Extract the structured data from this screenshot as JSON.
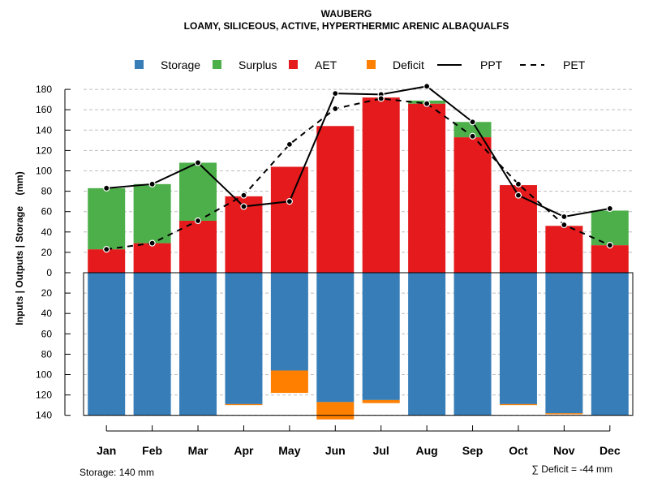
{
  "chart_data": {
    "type": "bar",
    "title": "WAUBERG",
    "subtitle": "LOAMY, SILICEOUS, ACTIVE, HYPERTHERMIC ARENIC ALBAQUALFS",
    "ylabel": "Inputs | Outputs | Storage    (mm)",
    "ylim": [
      -140,
      180
    ],
    "y_ticks": [
      180,
      160,
      140,
      120,
      100,
      80,
      60,
      40,
      20,
      0,
      -20,
      -40,
      -60,
      -80,
      -100,
      -120,
      -140
    ],
    "y_tick_labels": [
      "180",
      "160",
      "140",
      "120",
      "100",
      "80",
      "60",
      "40",
      "20",
      "0",
      "20",
      "40",
      "60",
      "80",
      "100",
      "120",
      "140"
    ],
    "categories": [
      "Jan",
      "Feb",
      "Mar",
      "Apr",
      "May",
      "Jun",
      "Jul",
      "Aug",
      "Sep",
      "Oct",
      "Nov",
      "Dec"
    ],
    "legend": [
      {
        "label": "Storage",
        "type": "box",
        "color": "#377eb8"
      },
      {
        "label": "Surplus",
        "type": "box",
        "color": "#4daf4a"
      },
      {
        "label": "AET",
        "type": "box",
        "color": "#e41a1c"
      },
      {
        "label": "Deficit",
        "type": "box",
        "color": "#ff7f00"
      },
      {
        "label": "PPT",
        "type": "line",
        "dash": "solid"
      },
      {
        "label": "PET",
        "type": "line",
        "dash": "dashed"
      }
    ],
    "series": [
      {
        "name": "AET",
        "color": "#e41a1c",
        "values": [
          23,
          29,
          51,
          75,
          104,
          144,
          172,
          166,
          133,
          86,
          46,
          27
        ]
      },
      {
        "name": "Surplus",
        "color": "#4daf4a",
        "values": [
          60,
          58,
          57,
          0,
          0,
          0,
          0,
          3,
          15,
          0,
          0,
          34
        ]
      },
      {
        "name": "Storage",
        "color": "#377eb8",
        "values": [
          140,
          140,
          140,
          129,
          96,
          127,
          125,
          140,
          140,
          129,
          138,
          140
        ]
      },
      {
        "name": "Deficit",
        "color": "#ff7f00",
        "values": [
          0,
          0,
          0,
          1,
          22,
          17,
          3,
          0,
          0,
          1,
          1,
          0
        ]
      },
      {
        "name": "PPT",
        "color": "#000000",
        "values": [
          83,
          87,
          108,
          65,
          70,
          176,
          175,
          183,
          148,
          76,
          55,
          63
        ]
      },
      {
        "name": "PET",
        "color": "#000000",
        "values": [
          23,
          29,
          51,
          76,
          126,
          161,
          171,
          166,
          134,
          87,
          47,
          27
        ]
      }
    ],
    "storage_capacity": 140,
    "storage_note": "Storage: 140 mm",
    "deficit_note": "∑ Deficit = -44 mm"
  }
}
